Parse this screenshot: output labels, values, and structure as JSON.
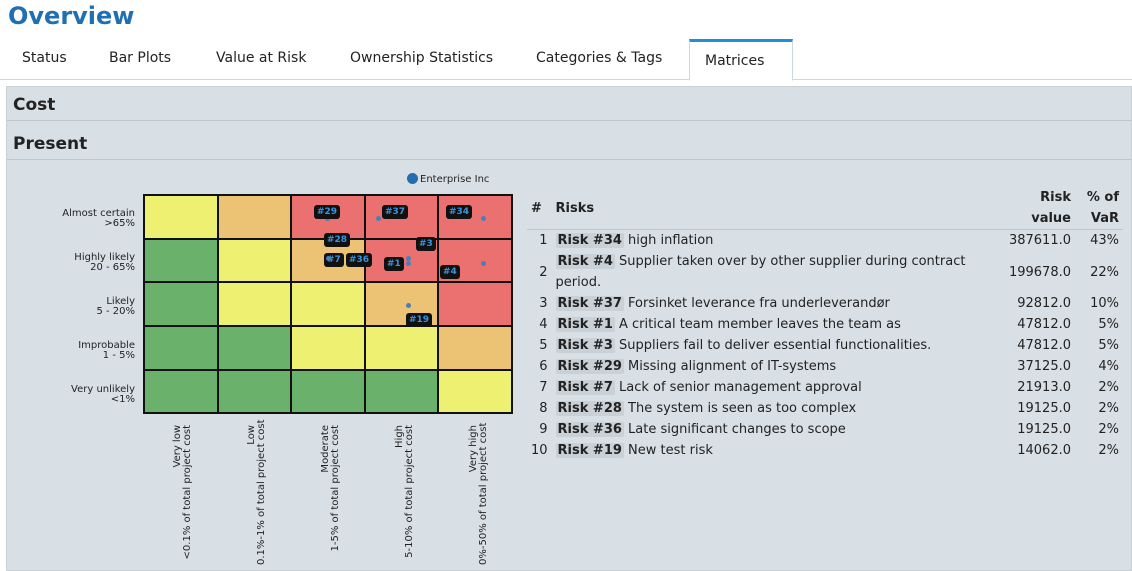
{
  "title": "Overview",
  "tabs": [
    {
      "label": "Status"
    },
    {
      "label": "Bar Plots"
    },
    {
      "label": "Value at Risk"
    },
    {
      "label": "Ownership Statistics"
    },
    {
      "label": "Categories & Tags"
    },
    {
      "label": "Matrices",
      "active": true
    }
  ],
  "sections": {
    "cost": "Cost",
    "present": "Present"
  },
  "legend": {
    "label": "Enterprise Inc",
    "color": "#1f6fb2"
  },
  "matrix": {
    "y_labels": [
      [
        "Almost certain",
        ">65%"
      ],
      [
        "Highly likely",
        "20 - 65%"
      ],
      [
        "Likely",
        "5 - 20%"
      ],
      [
        "Improbable",
        "1 - 5%"
      ],
      [
        "Very unlikely",
        "<1%"
      ]
    ],
    "x_labels": [
      [
        "Very low",
        "<0.1% of total project cost"
      ],
      [
        "Low",
        "0.1%-1% of total project cost"
      ],
      [
        "Moderate",
        "1-5% of total project cost"
      ],
      [
        "High",
        "5-10% of total project cost"
      ],
      [
        "Very high",
        "0%-50% of total project cost"
      ]
    ],
    "colors": {
      "green": "#6ab26c",
      "yellow": "#edf070",
      "orange": "#ecc275",
      "red": "#eb7070"
    },
    "cells": [
      [
        "yellow",
        "orange",
        "red",
        "red",
        "red"
      ],
      [
        "green",
        "yellow",
        "orange",
        "red",
        "red"
      ],
      [
        "green",
        "yellow",
        "yellow",
        "orange",
        "red"
      ],
      [
        "green",
        "green",
        "yellow",
        "yellow",
        "orange"
      ],
      [
        "green",
        "green",
        "green",
        "green",
        "yellow"
      ]
    ],
    "risks": [
      {
        "label": "#29",
        "prob_row": 0,
        "impact_col": 2
      },
      {
        "label": "#37",
        "prob_row": 0,
        "impact_col": 3
      },
      {
        "label": "#34",
        "prob_row": 0,
        "impact_col": 4
      },
      {
        "label": "#28",
        "prob_row": 1,
        "impact_col": 2
      },
      {
        "label": "#3",
        "prob_row": 1,
        "impact_col": 3
      },
      {
        "label": "#7",
        "prob_row": 1,
        "impact_col": 2
      },
      {
        "label": "#36",
        "prob_row": 1,
        "impact_col": 2
      },
      {
        "label": "#1",
        "prob_row": 1,
        "impact_col": 3
      },
      {
        "label": "#4",
        "prob_row": 1,
        "impact_col": 4
      },
      {
        "label": "#19",
        "prob_row": 2,
        "impact_col": 3
      }
    ]
  },
  "table": {
    "headers": {
      "num": "#",
      "risks": "Risks",
      "value": "Risk value",
      "value_l1": "Risk",
      "value_l2": "value",
      "var_l1": "% of",
      "var_l2": "VaR"
    },
    "rows": [
      {
        "n": "1",
        "name": "Risk #34",
        "desc": "high inflation",
        "value": "387611.0",
        "var": "43%"
      },
      {
        "n": "2",
        "name": "Risk #4",
        "desc": "Supplier taken over by other supplier during contract period.",
        "value": "199678.0",
        "var": "22%"
      },
      {
        "n": "3",
        "name": "Risk #37",
        "desc": "Forsinket leverance fra underleverandør",
        "value": "92812.0",
        "var": "10%"
      },
      {
        "n": "4",
        "name": "Risk #1",
        "desc": "A critical team member leaves the team as",
        "value": "47812.0",
        "var": "5%"
      },
      {
        "n": "5",
        "name": "Risk #3",
        "desc": "Suppliers fail to deliver essential functionalities.",
        "value": "47812.0",
        "var": "5%"
      },
      {
        "n": "6",
        "name": "Risk #29",
        "desc": "Missing alignment of IT-systems",
        "value": "37125.0",
        "var": "4%"
      },
      {
        "n": "7",
        "name": "Risk #7",
        "desc": "Lack of senior management approval",
        "value": "21913.0",
        "var": "2%"
      },
      {
        "n": "8",
        "name": "Risk #28",
        "desc": "The system is seen as too complex",
        "value": "19125.0",
        "var": "2%"
      },
      {
        "n": "9",
        "name": "Risk #36",
        "desc": "Late significant changes to scope",
        "value": "19125.0",
        "var": "2%"
      },
      {
        "n": "10",
        "name": "Risk #19",
        "desc": "New test risk",
        "value": "14062.0",
        "var": "2%"
      }
    ]
  }
}
